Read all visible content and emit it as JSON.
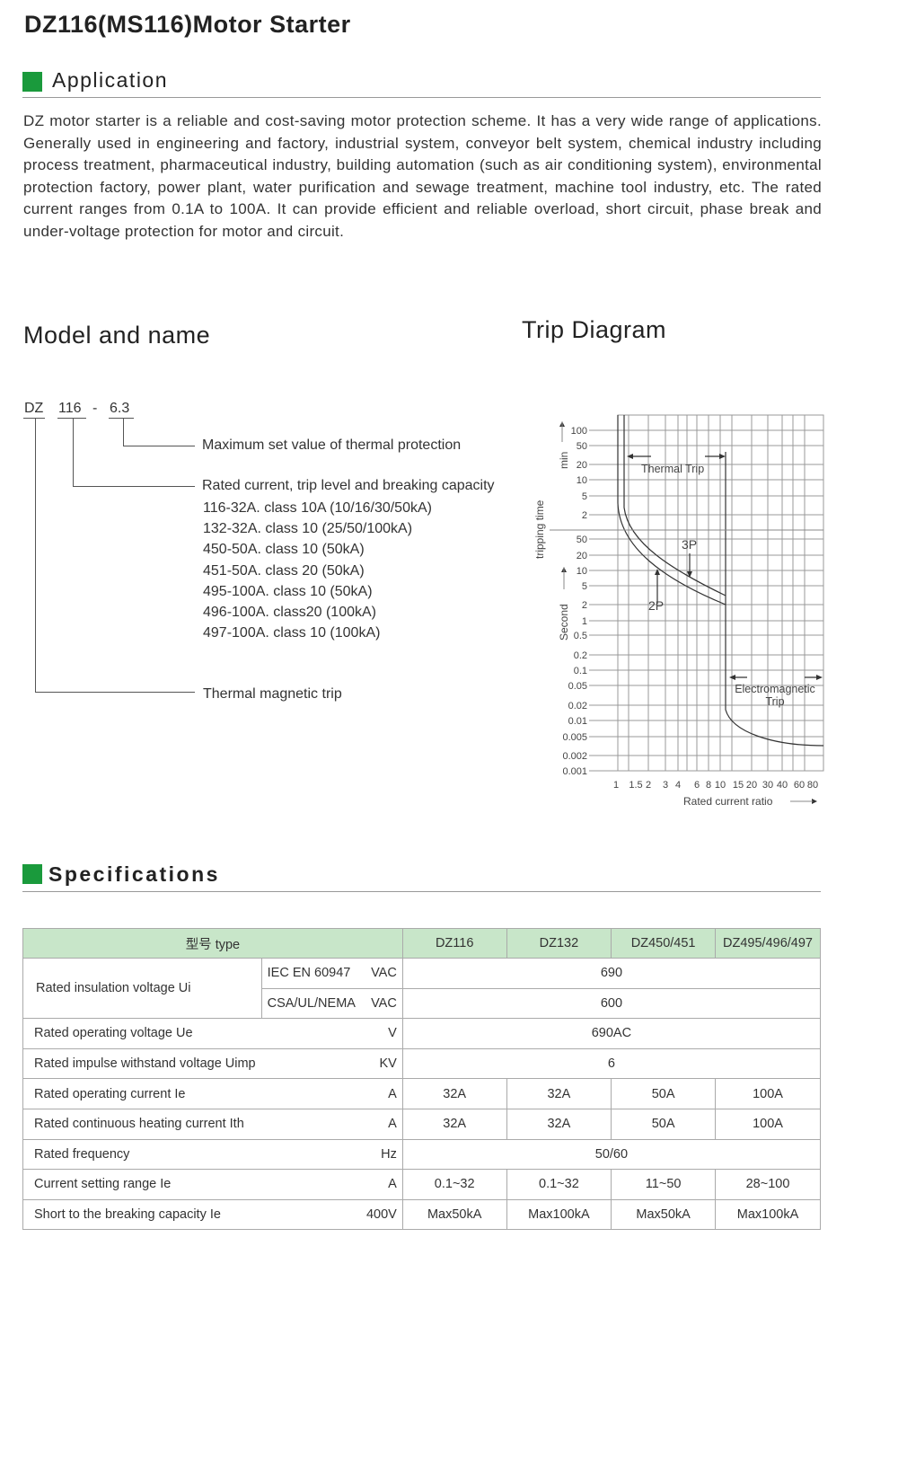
{
  "title": "DZ116(MS116)Motor Starter",
  "application": {
    "heading": "Application",
    "text": "DZ motor starter is a reliable and cost-saving motor protection scheme. It has a very wide range of applications. Generally used in engineering and factory, industrial system, conveyor belt system, chemical industry including process treatment, pharmaceutical industry, building automation (such as air conditioning system), environmental protection factory, power plant, water purification and sewage treatment, machine tool industry, etc. The rated current ranges from 0.1A to 100A. It can provide efficient and reliable overload, short circuit, phase break and under-voltage protection for motor and circuit."
  },
  "model": {
    "heading": "Model and name",
    "code": {
      "prefix": "DZ",
      "series": "116",
      "dash": "-",
      "value": "6.3"
    },
    "max_set": "Maximum set value of thermal protection",
    "rated": "Rated current, trip level and breaking capacity",
    "variants": [
      "116-32A. class 10A (10/16/30/50kA)",
      "132-32A. class 10 (25/50/100kA)",
      "450-50A. class 10 (50kA)",
      "451-50A. class 20 (50kA)",
      "495-100A. class 10 (50kA)",
      "496-100A. class20 (100kA)",
      "497-100A. class 10 (100kA)"
    ],
    "thermal": "Thermal magnetic trip"
  },
  "trip": {
    "heading": "Trip Diagram",
    "ylabel": "tripping time",
    "min_label": "min",
    "sec_label": "Second",
    "xlabel": "Rated current ratio",
    "min_ticks": [
      "100",
      "50",
      "20",
      "10",
      "5",
      "2"
    ],
    "sec_ticks": [
      "50",
      "20",
      "10",
      "5",
      "2",
      "1",
      "0.5",
      "0.2",
      "0.1",
      "0.05",
      "0.02",
      "0.01",
      "0.005",
      "0.002",
      "0.001"
    ],
    "x_ticks": [
      "1",
      "1.5",
      "2",
      "3",
      "4",
      "6",
      "8",
      "10",
      "15",
      "20",
      "30",
      "40",
      "60",
      "80"
    ],
    "thermal_label": "Thermal Trip",
    "em_label": [
      "Electromagnetic",
      "Trip"
    ],
    "p2": "2P",
    "p3": "3P"
  },
  "specs": {
    "heading": "Specifications",
    "header": [
      "型号 type",
      "DZ116",
      "DZ132",
      "DZ450/451",
      "DZ495/496/497"
    ],
    "insulation": {
      "label": "Rated insulation voltage Ui",
      "rows": [
        {
          "std": "IEC EN 60947",
          "unit": "VAC",
          "value": "690"
        },
        {
          "std": "CSA/UL/NEMA",
          "unit": "VAC",
          "value": "600"
        }
      ]
    },
    "rows": [
      {
        "label": "Rated operating voltage  Ue",
        "unit": "V",
        "values": [
          "690AC"
        ]
      },
      {
        "label": "Rated impulse withstand voltage  Uimp",
        "unit": "KV",
        "values": [
          "6"
        ]
      },
      {
        "label": "Rated operating current  Ie",
        "unit": "A",
        "values": [
          "32A",
          "32A",
          "50A",
          "100A"
        ]
      },
      {
        "label": "Rated continuous heating current  Ith",
        "unit": "A",
        "values": [
          "32A",
          "32A",
          "50A",
          "100A"
        ]
      },
      {
        "label": "Rated frequency",
        "unit": "Hz",
        "values": [
          "50/60"
        ]
      },
      {
        "label": "Current setting range  Ie",
        "unit": "A",
        "values": [
          "0.1~32",
          "0.1~32",
          "11~50",
          "28~100"
        ]
      },
      {
        "label": "Short to the breaking capacity  Ie",
        "unit": "400V",
        "values": [
          "Max50kA",
          "Max100kA",
          "Max50kA",
          "Max100kA"
        ]
      }
    ]
  },
  "colors": {
    "accent": "#1a9a3c",
    "table_header": "#c8e6c9"
  }
}
